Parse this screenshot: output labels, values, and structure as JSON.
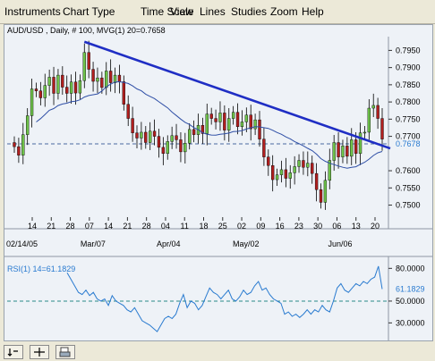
{
  "menu": {
    "items": [
      "Instruments",
      "Chart Type",
      "Time Scale",
      "View",
      "Lines",
      "Studies",
      "Zoom",
      "Help"
    ]
  },
  "colors": {
    "background": "#eef2f7",
    "up_candle": "#6ec24a",
    "down_candle": "#b01e1e",
    "trendline": "#1f2ec4",
    "moving_average": "#2f4fa6",
    "rsi_line": "#2a7bd0",
    "reference_line": "#4a6aa0"
  },
  "toolbar": {
    "buttons": [
      "pointer-icon",
      "crosshair-icon",
      "print-icon"
    ]
  },
  "chart_data": [
    {
      "type": "candlestick",
      "title": "AUD/USD , Daily, # 100, MVG(1) 20=0.7658",
      "y_ticks": [
        "0.7950",
        "0.7900",
        "0.7850",
        "0.7800",
        "0.7750",
        "0.7700",
        "0.7600",
        "0.7550",
        "0.7500"
      ],
      "price_tick_values": [
        0.795,
        0.79,
        0.785,
        0.78,
        0.775,
        0.77,
        0.76,
        0.755,
        0.75
      ],
      "current_price_label": "0.7678",
      "current_price": 0.7678,
      "ylim": [
        0.7465,
        0.799
      ],
      "x_day_ticks": [
        "14",
        "21",
        "28",
        "07",
        "14",
        "21",
        "28",
        "04",
        "11",
        "18",
        "25",
        "02",
        "09",
        "16",
        "23",
        "30",
        "06",
        "13",
        "20"
      ],
      "x_month_labels": [
        "02/14/05",
        "Mar/07",
        "Apr/04",
        "May/02",
        "Jun/06"
      ],
      "closes": [
        0.767,
        0.7645,
        0.7705,
        0.776,
        0.7838,
        0.7832,
        0.7812,
        0.7848,
        0.7872,
        0.7825,
        0.7878,
        0.7843,
        0.7825,
        0.7858,
        0.7826,
        0.7862,
        0.7944,
        0.7895,
        0.786,
        0.787,
        0.7842,
        0.789,
        0.7856,
        0.7878,
        0.7859,
        0.7793,
        0.7752,
        0.771,
        0.7695,
        0.7712,
        0.7682,
        0.7715,
        0.77,
        0.7668,
        0.765,
        0.7685,
        0.7702,
        0.769,
        0.7655,
        0.768,
        0.772,
        0.7705,
        0.7732,
        0.7708,
        0.7765,
        0.7752,
        0.7742,
        0.7768,
        0.7718,
        0.7752,
        0.777,
        0.7728,
        0.7742,
        0.7762,
        0.7722,
        0.7748,
        0.7692,
        0.764,
        0.7615,
        0.7574,
        0.7588,
        0.7603,
        0.7578,
        0.7594,
        0.7612,
        0.763,
        0.761,
        0.7622,
        0.7592,
        0.7545,
        0.7508,
        0.7572,
        0.763,
        0.7682,
        0.764,
        0.7672,
        0.7642,
        0.769,
        0.765,
        0.771,
        0.7712,
        0.7782,
        0.779,
        0.7752,
        0.7692
      ],
      "rsi": {
        "label": "RSI(1) 14=61.1829",
        "value_label": "61.1829",
        "value": 61.1829,
        "y_ticks": [
          "80.0000",
          "50.0000",
          "30.0000"
        ],
        "tick_values": [
          80,
          50,
          30
        ],
        "ylim": [
          18,
          86
        ],
        "reference_level": 50,
        "values": [
          76,
          70,
          64,
          58,
          56,
          60,
          55,
          58,
          52,
          50,
          52,
          46,
          55,
          50,
          48,
          46,
          42,
          40,
          44,
          38,
          32,
          30,
          28,
          25,
          22,
          28,
          34,
          36,
          34,
          38,
          48,
          56,
          44,
          50,
          48,
          42,
          46,
          54,
          62,
          58,
          56,
          52,
          56,
          60,
          52,
          50,
          54,
          60,
          56,
          58,
          64,
          68,
          60,
          62,
          56,
          52,
          50,
          48,
          38,
          40,
          36,
          38,
          35,
          38,
          42,
          38,
          42,
          40,
          46,
          42,
          40,
          50,
          62,
          66,
          60,
          58,
          62,
          66,
          64,
          68,
          66,
          70,
          72,
          82,
          61
        ]
      }
    }
  ]
}
